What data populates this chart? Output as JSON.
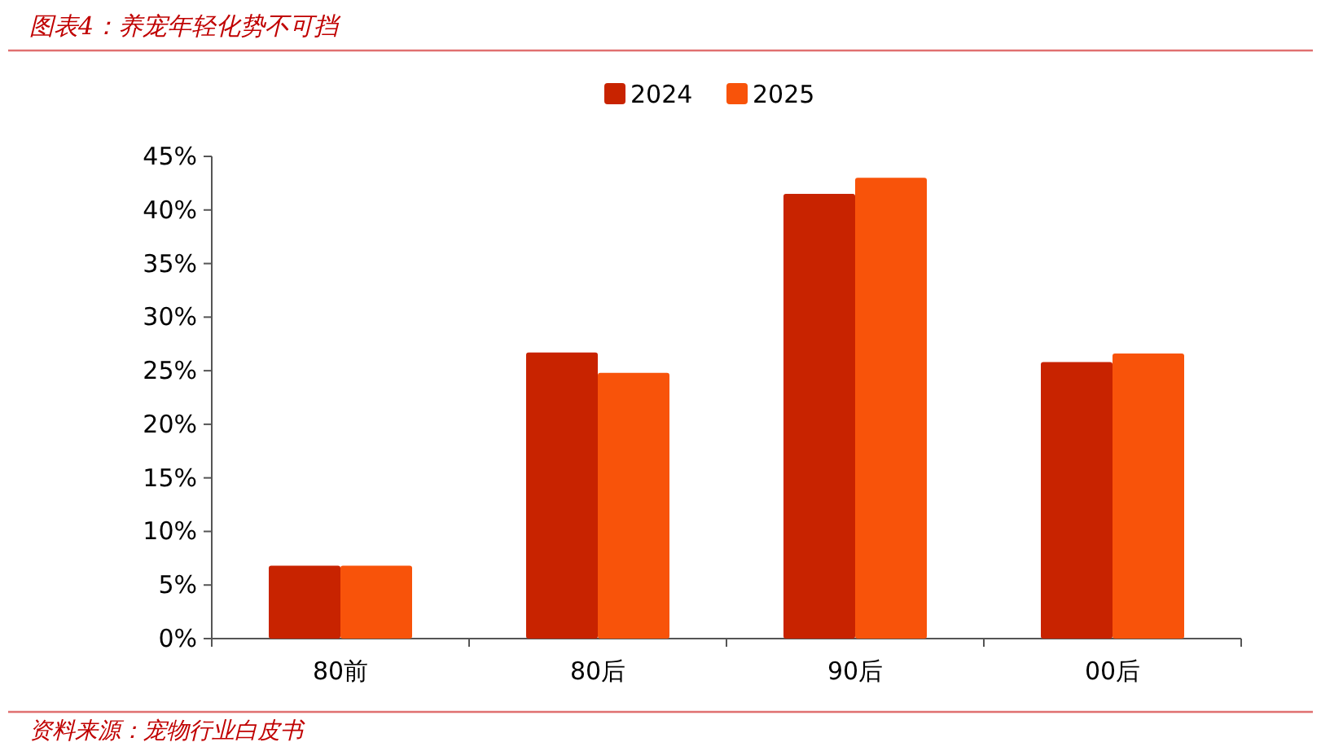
{
  "chart_data": {
    "type": "bar",
    "title": "图表4：养宠年轻化势不可挡",
    "categories": [
      "80前",
      "80后",
      "90后",
      "00后"
    ],
    "series": [
      {
        "name": "2024",
        "color": "#c82300",
        "values": [
          6.8,
          26.7,
          41.5,
          25.8
        ]
      },
      {
        "name": "2025",
        "color": "#f8530a",
        "values": [
          6.8,
          24.8,
          43.0,
          26.6
        ]
      }
    ],
    "ylim": [
      0,
      45
    ],
    "yticks": [
      {
        "value": 0,
        "label": "0%"
      },
      {
        "value": 5,
        "label": "5%"
      },
      {
        "value": 10,
        "label": "10%"
      },
      {
        "value": 15,
        "label": "15%"
      },
      {
        "value": 20,
        "label": "20%"
      },
      {
        "value": 25,
        "label": "25%"
      },
      {
        "value": 30,
        "label": "30%"
      },
      {
        "value": 35,
        "label": "35%"
      },
      {
        "value": 40,
        "label": "40%"
      },
      {
        "value": 45,
        "label": "45%"
      }
    ],
    "grid": false,
    "legend": "top",
    "annotations": [
      "资料来源：宠物行业白皮书"
    ]
  }
}
